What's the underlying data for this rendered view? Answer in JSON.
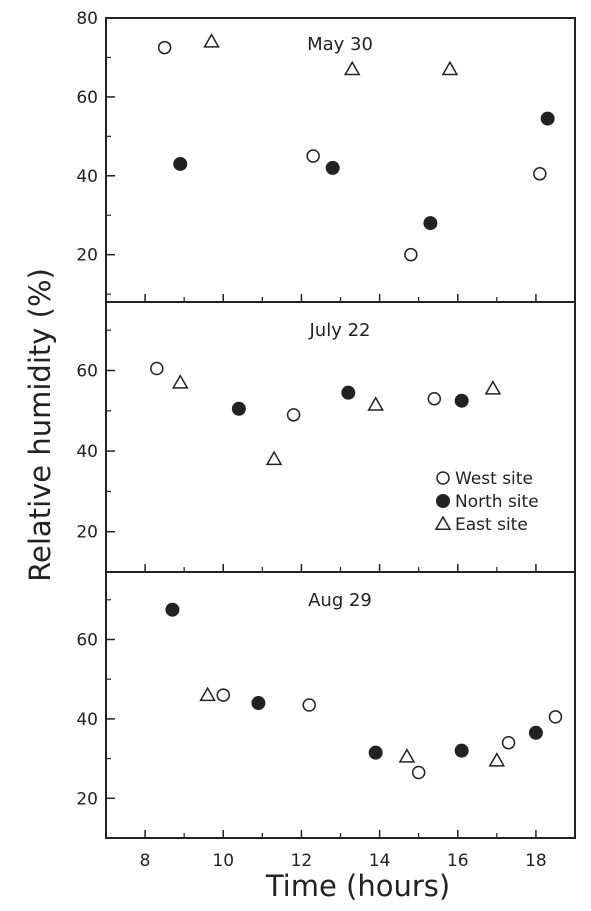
{
  "chart_data": {
    "type": "scatter",
    "xlabel": "Time  (hours)",
    "ylabel": "Relative humidity (%)",
    "xlim": [
      7,
      19
    ],
    "x_ticks": [
      8,
      10,
      12,
      14,
      16,
      18
    ],
    "legend_position": "right (middle panel)",
    "legend": [
      {
        "series": "west",
        "label": "West site",
        "marker": "open-circle"
      },
      {
        "series": "north",
        "label": "North site",
        "marker": "filled-circle"
      },
      {
        "series": "east",
        "label": "East site",
        "marker": "open-triangle"
      }
    ],
    "panels": [
      {
        "title": "May 30",
        "ylim": [
          8,
          80
        ],
        "y_ticks": [
          20,
          40,
          60,
          80
        ],
        "series": {
          "west": {
            "x": [
              8.5,
              12.3,
              14.8,
              18.1
            ],
            "y": [
              72.5,
              45,
              20,
              40.5
            ]
          },
          "north": {
            "x": [
              8.9,
              12.8,
              15.3,
              18.3
            ],
            "y": [
              43,
              42,
              28,
              54.5
            ]
          },
          "east": {
            "x": [
              9.7,
              13.3,
              15.8
            ],
            "y": [
              74,
              67,
              67
            ]
          }
        }
      },
      {
        "title": "July 22",
        "ylim": [
          10,
          77
        ],
        "y_ticks": [
          20,
          40,
          60
        ],
        "series": {
          "west": {
            "x": [
              8.3,
              11.8,
              15.4
            ],
            "y": [
              60.5,
              49,
              53
            ]
          },
          "north": {
            "x": [
              10.4,
              13.2,
              16.1
            ],
            "y": [
              50.5,
              54.5,
              52.5
            ]
          },
          "east": {
            "x": [
              8.9,
              11.3,
              13.9,
              16.9
            ],
            "y": [
              57,
              38,
              51.5,
              55.5
            ]
          }
        }
      },
      {
        "title": "Aug 29",
        "ylim": [
          10,
          77
        ],
        "y_ticks": [
          20,
          40,
          60
        ],
        "series": {
          "west": {
            "x": [
              10.0,
              12.2,
              15.0,
              17.3,
              18.5
            ],
            "y": [
              46,
              43.5,
              26.5,
              34,
              40.5
            ]
          },
          "north": {
            "x": [
              8.7,
              10.9,
              13.9,
              16.1,
              18.0
            ],
            "y": [
              67.5,
              44,
              31.5,
              32,
              36.5
            ]
          },
          "east": {
            "x": [
              9.6,
              14.7,
              17.0
            ],
            "y": [
              46,
              30.5,
              29.5
            ]
          }
        }
      }
    ]
  }
}
